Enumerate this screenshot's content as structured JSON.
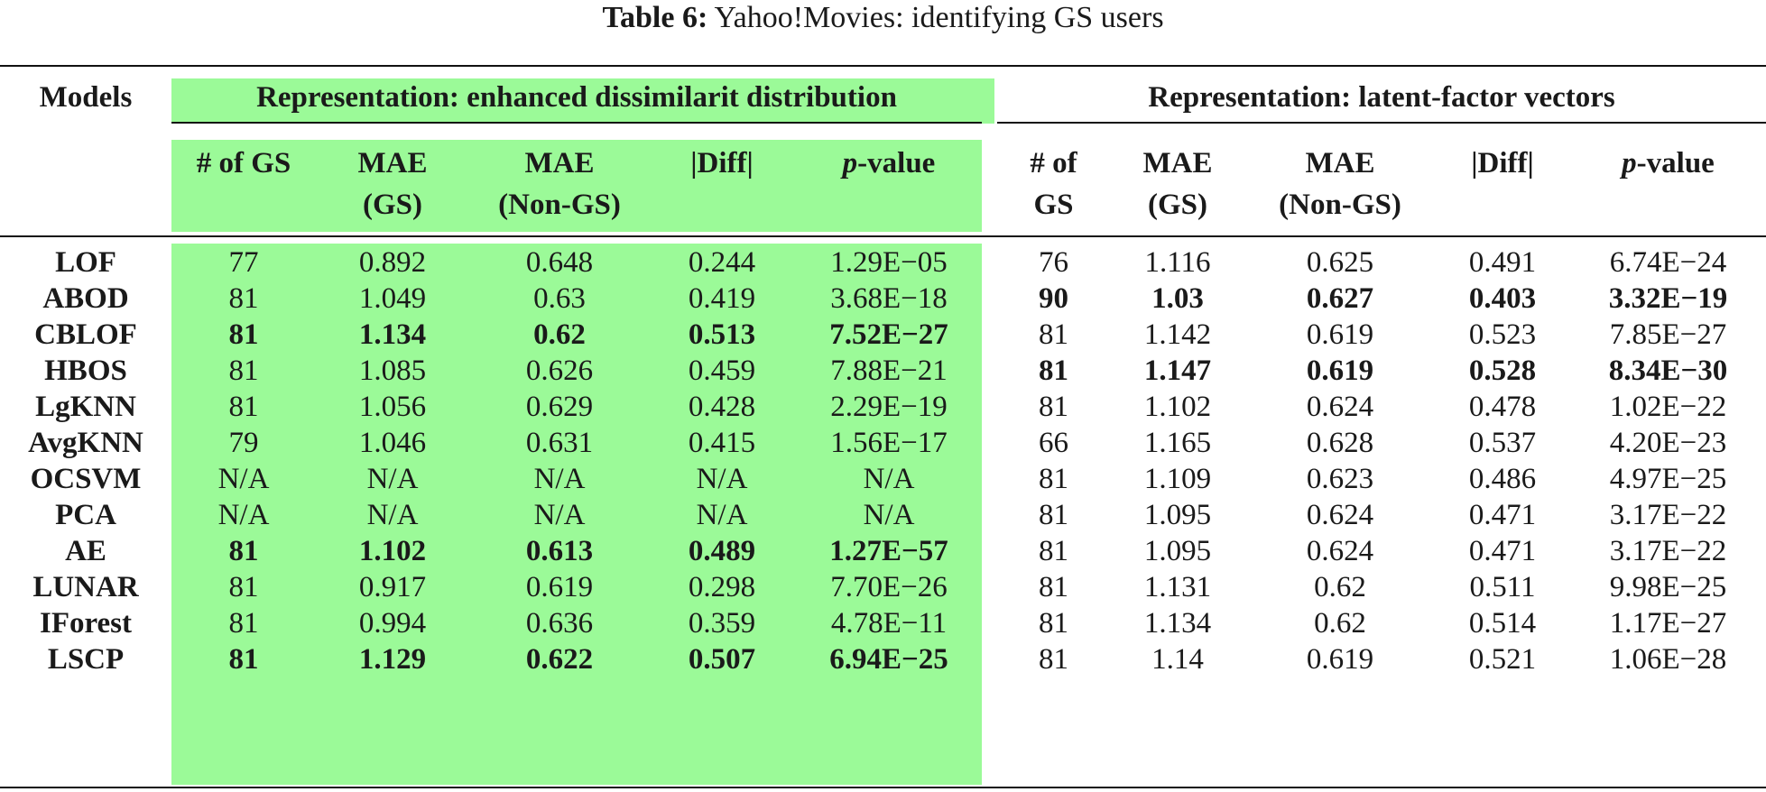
{
  "caption": {
    "label": "Table 6:",
    "text": "Yahoo!Movies: identifying GS users"
  },
  "colors": {
    "highlight": "#9bfa98",
    "text": "#1a1a1a",
    "rule": "#111111"
  },
  "header": {
    "models": "Models",
    "group_left": "Representation: enhanced dissimilarit distribution",
    "group_right": "Representation: latent-factor vectors",
    "left_cols": [
      {
        "l1": "# of GS",
        "l2": ""
      },
      {
        "l1": "MAE",
        "l2": "(GS)"
      },
      {
        "l1": "MAE",
        "l2": "(Non-GS)"
      },
      {
        "l1": "|Diff|",
        "l2": ""
      },
      {
        "l1": "p",
        "suffix": "-value",
        "l2": ""
      }
    ],
    "right_cols": [
      {
        "l1": "# of",
        "l2": "GS"
      },
      {
        "l1": "MAE",
        "l2": "(GS)"
      },
      {
        "l1": "MAE",
        "l2": "(Non-GS)"
      },
      {
        "l1": "|Diff|",
        "l2": ""
      },
      {
        "l1": "p",
        "suffix": "-value",
        "l2": ""
      }
    ]
  },
  "rows": [
    {
      "model": "LOF",
      "left": [
        "77",
        "0.892",
        "0.648",
        "0.244",
        "1.29E−05"
      ],
      "left_bold": false,
      "right": [
        "76",
        "1.116",
        "0.625",
        "0.491",
        "6.74E−24"
      ],
      "right_bold": false
    },
    {
      "model": "ABOD",
      "left": [
        "81",
        "1.049",
        "0.63",
        "0.419",
        "3.68E−18"
      ],
      "left_bold": false,
      "right": [
        "90",
        "1.03",
        "0.627",
        "0.403",
        "3.32E−19"
      ],
      "right_bold": true
    },
    {
      "model": "CBLOF",
      "left": [
        "81",
        "1.134",
        "0.62",
        "0.513",
        "7.52E−27"
      ],
      "left_bold": true,
      "right": [
        "81",
        "1.142",
        "0.619",
        "0.523",
        "7.85E−27"
      ],
      "right_bold": false
    },
    {
      "model": "HBOS",
      "left": [
        "81",
        "1.085",
        "0.626",
        "0.459",
        "7.88E−21"
      ],
      "left_bold": false,
      "right": [
        "81",
        "1.147",
        "0.619",
        "0.528",
        "8.34E−30"
      ],
      "right_bold": true
    },
    {
      "model": "LgKNN",
      "left": [
        "81",
        "1.056",
        "0.629",
        "0.428",
        "2.29E−19"
      ],
      "left_bold": false,
      "right": [
        "81",
        "1.102",
        "0.624",
        "0.478",
        "1.02E−22"
      ],
      "right_bold": false
    },
    {
      "model": "AvgKNN",
      "left": [
        "79",
        "1.046",
        "0.631",
        "0.415",
        "1.56E−17"
      ],
      "left_bold": false,
      "right": [
        "66",
        "1.165",
        "0.628",
        "0.537",
        "4.20E−23"
      ],
      "right_bold": false
    },
    {
      "model": "OCSVM",
      "left": [
        "N/A",
        "N/A",
        "N/A",
        "N/A",
        "N/A"
      ],
      "left_bold": false,
      "right": [
        "81",
        "1.109",
        "0.623",
        "0.486",
        "4.97E−25"
      ],
      "right_bold": false
    },
    {
      "model": "PCA",
      "left": [
        "N/A",
        "N/A",
        "N/A",
        "N/A",
        "N/A"
      ],
      "left_bold": false,
      "right": [
        "81",
        "1.095",
        "0.624",
        "0.471",
        "3.17E−22"
      ],
      "right_bold": false
    },
    {
      "model": "AE",
      "left": [
        "81",
        "1.102",
        "0.613",
        "0.489",
        "1.27E−57"
      ],
      "left_bold": true,
      "right": [
        "81",
        "1.095",
        "0.624",
        "0.471",
        "3.17E−22"
      ],
      "right_bold": false
    },
    {
      "model": "LUNAR",
      "left": [
        "81",
        "0.917",
        "0.619",
        "0.298",
        "7.70E−26"
      ],
      "left_bold": false,
      "right": [
        "81",
        "1.131",
        "0.62",
        "0.511",
        "9.98E−25"
      ],
      "right_bold": false
    },
    {
      "model": "IForest",
      "left": [
        "81",
        "0.994",
        "0.636",
        "0.359",
        "4.78E−11"
      ],
      "left_bold": false,
      "right": [
        "81",
        "1.134",
        "0.62",
        "0.514",
        "1.17E−27"
      ],
      "right_bold": false
    },
    {
      "model": "LSCP",
      "left": [
        "81",
        "1.129",
        "0.622",
        "0.507",
        "6.94E−25"
      ],
      "left_bold": true,
      "right": [
        "81",
        "1.14",
        "0.619",
        "0.521",
        "1.06E−28"
      ],
      "right_bold": false
    }
  ]
}
